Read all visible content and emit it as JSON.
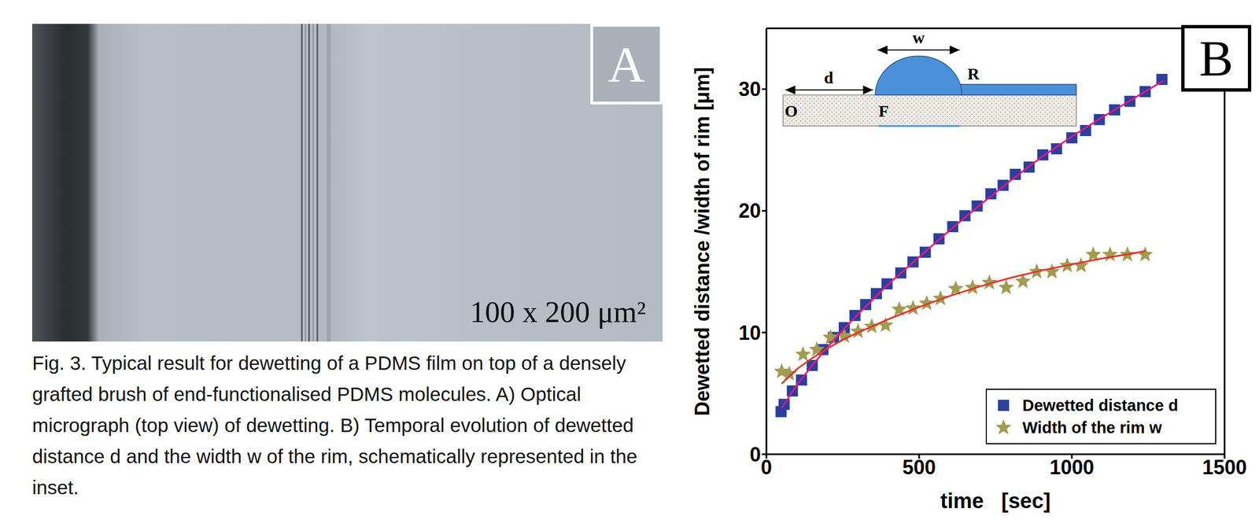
{
  "panel_a": {
    "letter": "A",
    "scale_label": "100 x 200 μm²"
  },
  "panel_b": {
    "letter": "B"
  },
  "caption": "Fig. 3. Typical result for dewetting of a PDMS film on top of a densely grafted brush of end-functionalised PDMS molecules. A) Optical micrograph (top view) of dewetting. B) Temporal evolution of dewetted distance d and the width w of the rim, schematically represented in the inset.",
  "chart_data": {
    "type": "scatter",
    "x_label": "time   [sec]",
    "y_label": "Dewetted distance /width of rim [μm]",
    "annotations": [
      "d",
      "w",
      "R",
      "O",
      "F"
    ],
    "xlim": [
      0,
      1500
    ],
    "xticks": [
      0,
      500,
      1000,
      1500
    ],
    "ylim": [
      0,
      35
    ],
    "yticks": [
      0,
      10,
      20,
      30
    ],
    "grid": false,
    "legend": "lower right",
    "series": [
      {
        "name": "Dewetted distance d",
        "color": "#2b3f9e",
        "marker": "square",
        "x": [
          48,
          58,
          85,
          115,
          150,
          185,
          220,
          255,
          290,
          325,
          360,
          395,
          440,
          480,
          520,
          565,
          610,
          650,
          690,
          735,
          775,
          815,
          860,
          905,
          950,
          1000,
          1045,
          1090,
          1140,
          1190,
          1240,
          1295
        ],
        "values": [
          3.5,
          4.1,
          5.2,
          6.1,
          7.3,
          8.6,
          9.6,
          10.4,
          11.4,
          12.3,
          13.2,
          14.0,
          14.9,
          15.8,
          16.6,
          17.7,
          18.7,
          19.6,
          20.4,
          21.4,
          22.1,
          23.0,
          23.6,
          24.6,
          25.1,
          26.0,
          26.6,
          27.5,
          28.3,
          29.0,
          29.8,
          30.8
        ]
      },
      {
        "name": "Width of the rim w",
        "color": "#a19c52",
        "marker": "star",
        "x": [
          50,
          75,
          120,
          165,
          210,
          255,
          300,
          345,
          390,
          435,
          480,
          525,
          570,
          620,
          675,
          730,
          785,
          840,
          885,
          935,
          985,
          1030,
          1070,
          1125,
          1182,
          1240
        ],
        "values": [
          6.8,
          6.6,
          8.2,
          8.6,
          9.6,
          9.7,
          10.1,
          10.5,
          10.6,
          11.9,
          12.0,
          12.4,
          12.8,
          13.6,
          13.7,
          14.1,
          13.7,
          14.2,
          15.0,
          15.0,
          15.5,
          15.5,
          16.4,
          16.4,
          16.4,
          16.4
        ]
      },
      {
        "type": "line",
        "color": "#e3187c",
        "line_style": "solid",
        "x": [
          50,
          100,
          150,
          200,
          250,
          300,
          400,
          500,
          600,
          700,
          800,
          900,
          1000,
          1100,
          1200,
          1300
        ],
        "values": [
          3.8,
          5.7,
          7.3,
          8.8,
          10.2,
          11.5,
          14.0,
          16.2,
          18.4,
          20.5,
          22.5,
          24.4,
          26.1,
          27.7,
          29.2,
          30.7
        ]
      },
      {
        "type": "line",
        "color": "#e2332b",
        "line_style": "solid",
        "x": [
          50,
          100,
          150,
          200,
          250,
          300,
          400,
          500,
          600,
          700,
          800,
          900,
          1000,
          1100,
          1200,
          1240
        ],
        "values": [
          5.8,
          7.0,
          7.9,
          8.7,
          9.4,
          10.0,
          11.1,
          12.1,
          13.0,
          13.8,
          14.5,
          15.1,
          15.6,
          16.1,
          16.5,
          16.7
        ]
      }
    ]
  }
}
